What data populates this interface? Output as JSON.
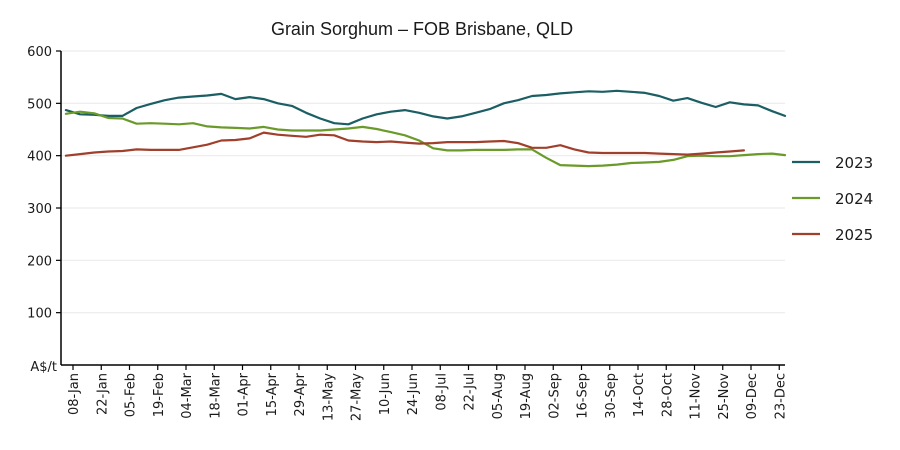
{
  "chart_data": {
    "type": "line",
    "title": "Grain Sorghum – FOB Brisbane, QLD",
    "xlabel": "",
    "ylabel": "A$/t",
    "ylim": [
      0,
      600
    ],
    "yticks": [
      100,
      200,
      300,
      400,
      500,
      600
    ],
    "grid": "horizontal",
    "legend_position": "right",
    "x_tick_labels": [
      "08-Jan",
      "22-Jan",
      "05-Feb",
      "19-Feb",
      "04-Mar",
      "18-Mar",
      "01-Apr",
      "15-Apr",
      "29-Apr",
      "13-May",
      "27-May",
      "10-Jun",
      "24-Jun",
      "08-Jul",
      "22-Jul",
      "05-Aug",
      "19-Aug",
      "02-Sep",
      "16-Sep",
      "30-Sep",
      "14-Oct",
      "28-Oct",
      "11-Nov",
      "25-Nov",
      "09-Dec",
      "23-Dec"
    ],
    "x_week_start": 0,
    "series": [
      {
        "name": "2023",
        "color": "#1b5e63",
        "week_offset": -0.5,
        "values": [
          487,
          479,
          478,
          476,
          476,
          491,
          499,
          506,
          511,
          513,
          515,
          518,
          508,
          512,
          508,
          500,
          495,
          482,
          471,
          462,
          460,
          471,
          479,
          484,
          487,
          482,
          475,
          471,
          475,
          482,
          489,
          500,
          506,
          514,
          516,
          519,
          521,
          523,
          522,
          524,
          522,
          520,
          514,
          505,
          510,
          501,
          493,
          502,
          498,
          496,
          485,
          476
        ]
      },
      {
        "name": "2024",
        "color": "#6a9a2a",
        "week_offset": -0.5,
        "values": [
          480,
          484,
          481,
          472,
          471,
          461,
          462,
          461,
          460,
          462,
          456,
          454,
          453,
          452,
          455,
          450,
          448,
          448,
          448,
          450,
          452,
          455,
          451,
          445,
          439,
          429,
          414,
          410,
          410,
          411,
          411,
          411,
          412,
          412,
          396,
          382,
          381,
          380,
          381,
          383,
          386,
          387,
          388,
          392,
          399,
          400,
          399,
          399,
          401,
          403,
          404,
          401
        ]
      },
      {
        "name": "2025",
        "color": "#a0402c",
        "week_offset": -0.5,
        "values": [
          400,
          403,
          406,
          408,
          409,
          412,
          411,
          411,
          411,
          416,
          421,
          429,
          430,
          433,
          444,
          440,
          438,
          436,
          440,
          439,
          429,
          427,
          426,
          427,
          425,
          423,
          424,
          426,
          426,
          426,
          427,
          428,
          424,
          415,
          415,
          420,
          412,
          406,
          405,
          405,
          405,
          405,
          404,
          403,
          402,
          404,
          406,
          408,
          410
        ]
      }
    ]
  }
}
